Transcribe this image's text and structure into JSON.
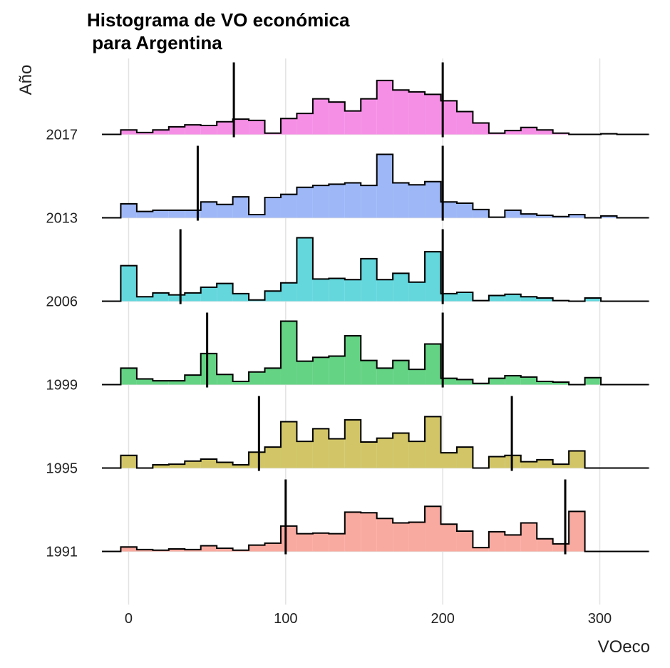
{
  "chart_data": {
    "type": "ridgeline_histogram",
    "title_lines": [
      "Histograma de VO económica",
      " para Argentina"
    ],
    "xlabel": "VOeco",
    "ylabel": "Año",
    "xlim": [
      -17,
      332
    ],
    "x_ticks": [
      0,
      100,
      200,
      300
    ],
    "y_categories": [
      "2017",
      "2013",
      "2006",
      "1999",
      "1995",
      "1991"
    ],
    "bins": {
      "start": -5,
      "width": 10.19,
      "count": 33
    },
    "grid": true,
    "legend": "none",
    "series": [
      {
        "category": "2017",
        "color": "#F58FE6",
        "counts": [
          0.07,
          0.03,
          0.07,
          0.12,
          0.15,
          0.14,
          0.2,
          0.24,
          0.22,
          0.02,
          0.25,
          0.33,
          0.56,
          0.51,
          0.37,
          0.56,
          0.85,
          0.7,
          0.67,
          0.63,
          0.53,
          0.36,
          0.18,
          0.02,
          0.06,
          0.11,
          0.07,
          0.02,
          0.0,
          0.0,
          0.01,
          0.0,
          0.0
        ],
        "markers": [
          67,
          200
        ]
      },
      {
        "category": "2013",
        "color": "#9DB7F7",
        "counts": [
          0.22,
          0.1,
          0.12,
          0.12,
          0.12,
          0.25,
          0.21,
          0.33,
          0.05,
          0.32,
          0.37,
          0.48,
          0.51,
          0.53,
          0.55,
          0.51,
          1.0,
          0.55,
          0.52,
          0.57,
          0.25,
          0.23,
          0.13,
          0.01,
          0.12,
          0.06,
          0.04,
          0.02,
          0.05,
          0.0,
          0.03,
          0.0,
          0.0
        ],
        "markers": [
          44,
          200
        ]
      },
      {
        "category": "2006",
        "color": "#64D7DD",
        "counts": [
          0.56,
          0.07,
          0.13,
          0.1,
          0.13,
          0.22,
          0.28,
          0.12,
          0.02,
          0.16,
          0.29,
          1.0,
          0.35,
          0.36,
          0.34,
          0.67,
          0.34,
          0.44,
          0.3,
          0.78,
          0.12,
          0.14,
          0.01,
          0.09,
          0.11,
          0.07,
          0.05,
          0.01,
          0.0,
          0.05,
          0.0,
          0.0,
          0.0
        ],
        "markers": [
          33,
          200
        ]
      },
      {
        "category": "1999",
        "color": "#64D384",
        "counts": [
          0.26,
          0.09,
          0.06,
          0.06,
          0.15,
          0.49,
          0.16,
          0.05,
          0.2,
          0.26,
          1.0,
          0.37,
          0.43,
          0.45,
          0.77,
          0.38,
          0.26,
          0.38,
          0.24,
          0.64,
          0.1,
          0.08,
          0.02,
          0.1,
          0.14,
          0.12,
          0.05,
          0.04,
          0.0,
          0.11,
          0.0,
          0.0,
          0.0
        ],
        "markers": [
          50,
          200
        ]
      },
      {
        "category": "1995",
        "color": "#D1C567",
        "counts": [
          0.2,
          0.0,
          0.05,
          0.06,
          0.11,
          0.14,
          0.09,
          0.05,
          0.25,
          0.33,
          0.73,
          0.42,
          0.62,
          0.46,
          0.76,
          0.41,
          0.47,
          0.55,
          0.42,
          0.81,
          0.24,
          0.33,
          0.0,
          0.18,
          0.2,
          0.1,
          0.13,
          0.06,
          0.27,
          0.0,
          0.0,
          0.0,
          0.0
        ],
        "markers": [
          83,
          244
        ]
      },
      {
        "category": "1991",
        "color": "#F9AAA0",
        "counts": [
          0.07,
          0.03,
          0.02,
          0.04,
          0.03,
          0.09,
          0.05,
          0.02,
          0.1,
          0.13,
          0.4,
          0.28,
          0.29,
          0.28,
          0.62,
          0.61,
          0.52,
          0.45,
          0.46,
          0.71,
          0.43,
          0.32,
          0.06,
          0.31,
          0.26,
          0.45,
          0.2,
          0.12,
          0.63,
          0.0,
          0.0,
          0.0,
          0.0
        ],
        "markers": [
          100,
          278
        ]
      }
    ]
  }
}
